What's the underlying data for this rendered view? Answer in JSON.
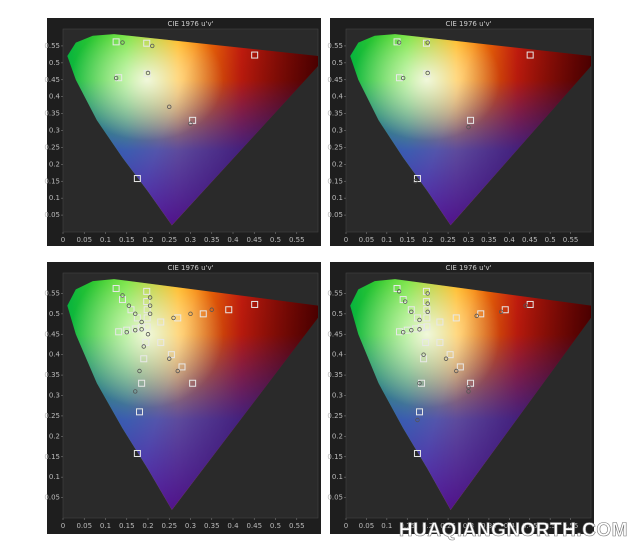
{
  "chart_data": [
    {
      "type": "scatter",
      "title": "CIE 1976 u'v'",
      "xlim": [
        0,
        0.6
      ],
      "ylim": [
        0,
        0.6
      ],
      "xticks": [
        0,
        0.05,
        0.1,
        0.15,
        0.2,
        0.25,
        0.3,
        0.35,
        0.4,
        0.45,
        0.5,
        0.55
      ],
      "yticks": [
        0.05,
        0.1,
        0.15,
        0.2,
        0.25,
        0.3,
        0.35,
        0.4,
        0.45,
        0.5,
        0.55
      ],
      "series": [
        {
          "marker": "square",
          "color": "#e8e8e8",
          "x": [
            0.125,
            0.131,
            0.197,
            0.198,
            0.451,
            0.305,
            0.175
          ],
          "y": [
            0.562,
            0.456,
            0.558,
            0.468,
            0.523,
            0.33,
            0.158
          ]
        },
        {
          "marker": "circle",
          "color": "#555555",
          "x": [
            0.14,
            0.125,
            0.21,
            0.2,
            0.25,
            0.3
          ],
          "y": [
            0.56,
            0.455,
            0.55,
            0.47,
            0.37,
            0.32
          ]
        }
      ]
    },
    {
      "type": "scatter",
      "title": "CIE 1976 u'v'",
      "xlim": [
        0,
        0.6
      ],
      "ylim": [
        0,
        0.6
      ],
      "xticks": [
        0,
        0.05,
        0.1,
        0.15,
        0.2,
        0.25,
        0.3,
        0.35,
        0.4,
        0.45,
        0.5,
        0.55
      ],
      "yticks": [
        0.05,
        0.1,
        0.15,
        0.2,
        0.25,
        0.3,
        0.35,
        0.4,
        0.45,
        0.5,
        0.55
      ],
      "series": [
        {
          "marker": "square",
          "color": "#e8e8e8",
          "x": [
            0.125,
            0.131,
            0.197,
            0.198,
            0.451,
            0.305,
            0.175
          ],
          "y": [
            0.562,
            0.456,
            0.558,
            0.468,
            0.523,
            0.33,
            0.158
          ]
        },
        {
          "marker": "circle",
          "color": "#555555",
          "x": [
            0.13,
            0.14,
            0.2,
            0.2,
            0.3,
            0.17
          ],
          "y": [
            0.56,
            0.455,
            0.56,
            0.47,
            0.31,
            0.15
          ]
        }
      ]
    },
    {
      "type": "scatter",
      "title": "CIE 1976 u'v'",
      "xlim": [
        0,
        0.6
      ],
      "ylim": [
        0,
        0.6
      ],
      "xticks": [
        0,
        0.05,
        0.1,
        0.15,
        0.2,
        0.25,
        0.3,
        0.35,
        0.4,
        0.45,
        0.5,
        0.55
      ],
      "yticks": [
        0.05,
        0.1,
        0.15,
        0.2,
        0.25,
        0.3,
        0.35,
        0.4,
        0.45,
        0.5,
        0.55
      ],
      "series": [
        {
          "marker": "square",
          "color": "#e8e8e8",
          "x": [
            0.125,
            0.14,
            0.16,
            0.175,
            0.131,
            0.15,
            0.17,
            0.185,
            0.197,
            0.197,
            0.198,
            0.198,
            0.451,
            0.39,
            0.33,
            0.27,
            0.23,
            0.305,
            0.28,
            0.255,
            0.23,
            0.175,
            0.18,
            0.185,
            0.19,
            0.195,
            0.198
          ],
          "y": [
            0.562,
            0.535,
            0.51,
            0.49,
            0.456,
            0.46,
            0.463,
            0.466,
            0.555,
            0.53,
            0.51,
            0.49,
            0.523,
            0.51,
            0.5,
            0.49,
            0.48,
            0.33,
            0.37,
            0.4,
            0.43,
            0.158,
            0.26,
            0.33,
            0.39,
            0.43,
            0.468
          ]
        },
        {
          "marker": "circle",
          "color": "#555555",
          "x": [
            0.14,
            0.155,
            0.17,
            0.185,
            0.15,
            0.17,
            0.185,
            0.205,
            0.205,
            0.205,
            0.35,
            0.3,
            0.26,
            0.27,
            0.25,
            0.17,
            0.18,
            0.19,
            0.2
          ],
          "y": [
            0.545,
            0.52,
            0.5,
            0.48,
            0.455,
            0.46,
            0.462,
            0.54,
            0.52,
            0.5,
            0.51,
            0.5,
            0.49,
            0.36,
            0.39,
            0.31,
            0.36,
            0.42,
            0.45
          ]
        }
      ]
    },
    {
      "type": "scatter",
      "title": "CIE 1976 u'v'",
      "xlim": [
        0,
        0.6
      ],
      "ylim": [
        0,
        0.6
      ],
      "xticks": [
        0,
        0.05,
        0.1,
        0.15,
        0.2,
        0.25,
        0.3,
        0.35,
        0.4,
        0.45,
        0.5,
        0.55
      ],
      "yticks": [
        0.05,
        0.1,
        0.15,
        0.2,
        0.25,
        0.3,
        0.35,
        0.4,
        0.45,
        0.5,
        0.55
      ],
      "series": [
        {
          "marker": "square",
          "color": "#e8e8e8",
          "x": [
            0.125,
            0.14,
            0.16,
            0.175,
            0.131,
            0.15,
            0.17,
            0.185,
            0.197,
            0.197,
            0.198,
            0.198,
            0.451,
            0.39,
            0.33,
            0.27,
            0.23,
            0.305,
            0.28,
            0.255,
            0.23,
            0.175,
            0.18,
            0.185,
            0.19,
            0.195,
            0.198
          ],
          "y": [
            0.562,
            0.535,
            0.51,
            0.49,
            0.456,
            0.46,
            0.463,
            0.466,
            0.555,
            0.53,
            0.51,
            0.49,
            0.523,
            0.51,
            0.5,
            0.49,
            0.48,
            0.33,
            0.37,
            0.4,
            0.43,
            0.158,
            0.26,
            0.33,
            0.39,
            0.43,
            0.468
          ]
        },
        {
          "marker": "circle",
          "color": "#555555",
          "x": [
            0.13,
            0.145,
            0.16,
            0.18,
            0.14,
            0.16,
            0.18,
            0.2,
            0.2,
            0.2,
            0.44,
            0.38,
            0.32,
            0.3,
            0.27,
            0.245,
            0.175,
            0.18,
            0.19,
            0.3
          ],
          "y": [
            0.555,
            0.53,
            0.505,
            0.485,
            0.455,
            0.46,
            0.462,
            0.55,
            0.525,
            0.505,
            0.52,
            0.505,
            0.495,
            0.32,
            0.36,
            0.39,
            0.24,
            0.33,
            0.4,
            0.31
          ]
        }
      ]
    }
  ],
  "watermark": "HUAQIANGNORTH.COM"
}
